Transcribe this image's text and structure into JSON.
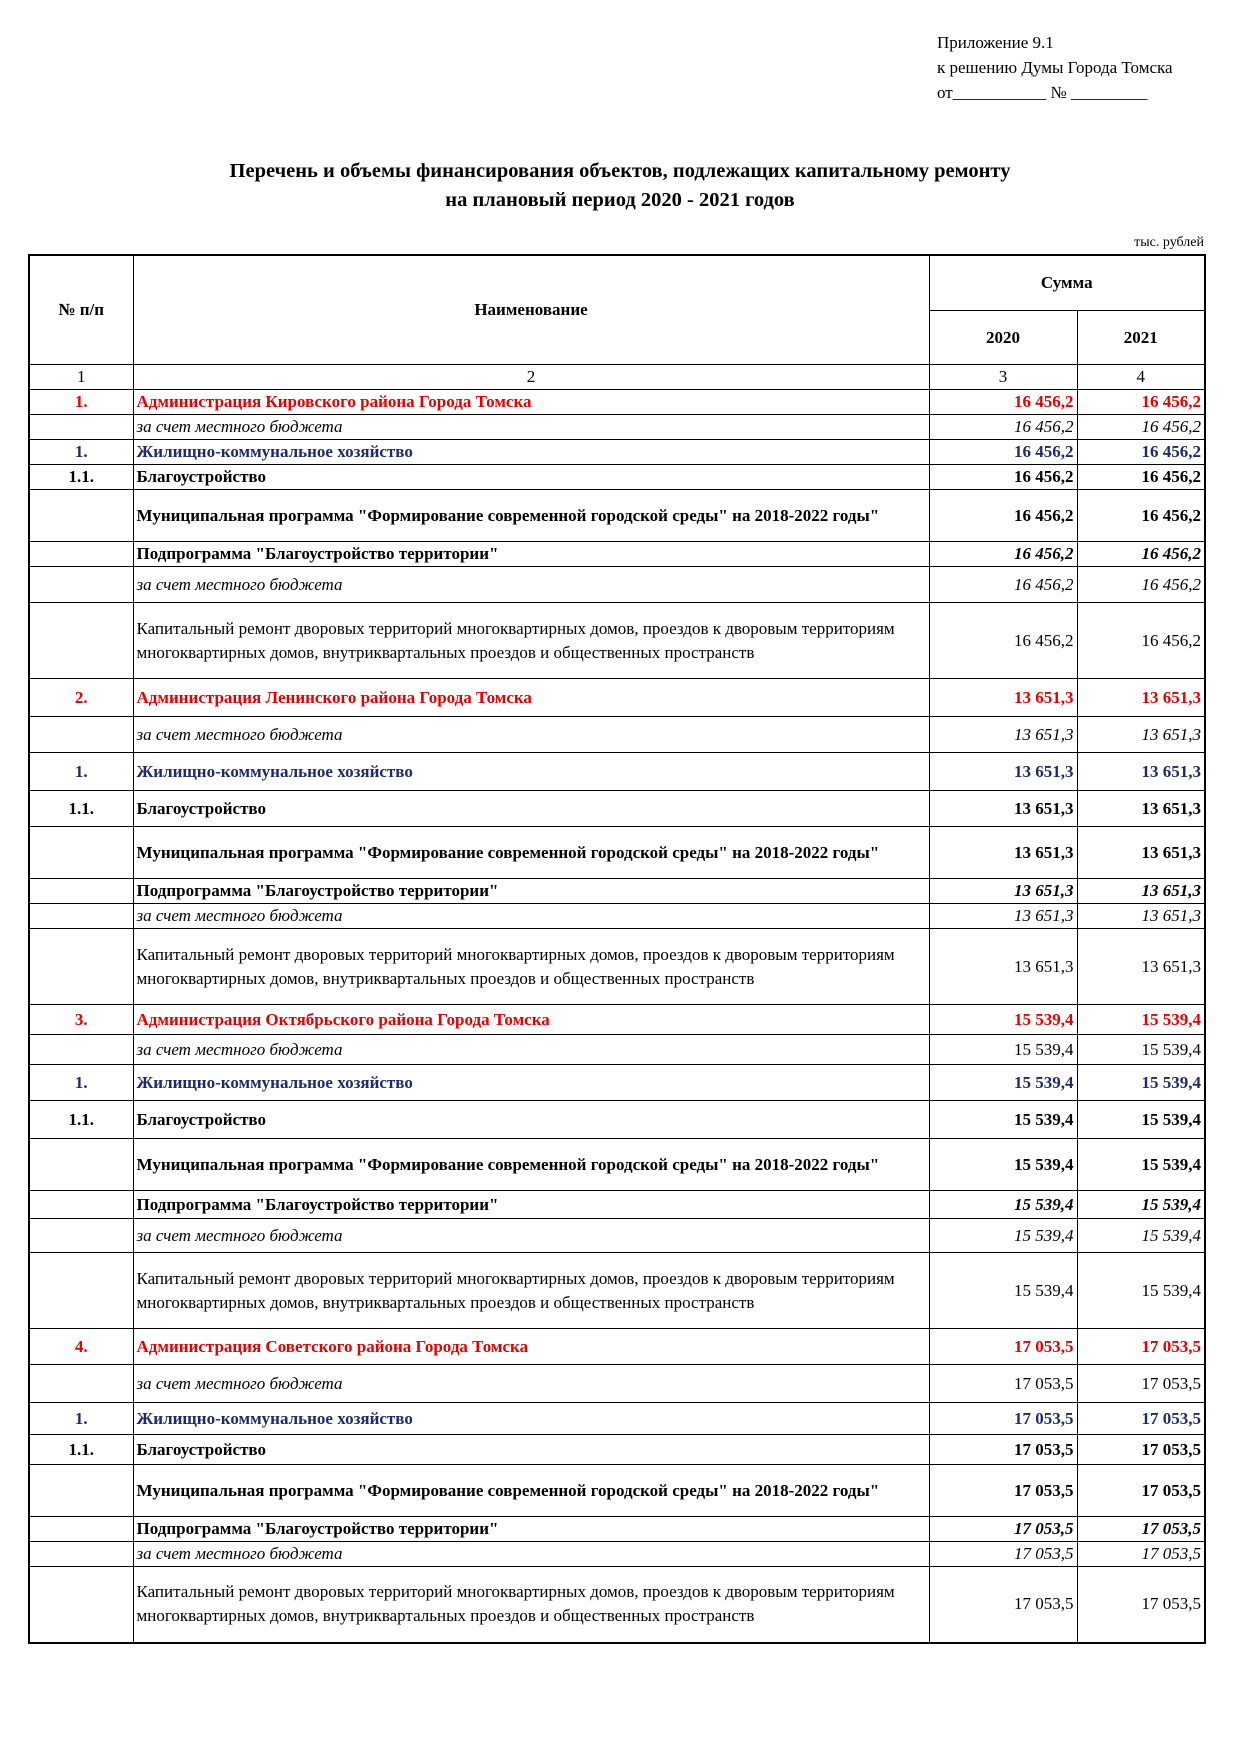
{
  "approval": {
    "line1": "Приложение 9.1",
    "line2": "к решению Думы Города Томска",
    "line3": "от___________ № _________"
  },
  "title": {
    "line1": "Перечень и объемы финансирования объектов, подлежащих капитальному ремонту",
    "line2": "на плановый период 2020 - 2021 годов"
  },
  "units": "тыс. рублей",
  "header": {
    "num": "№ п/п",
    "name": "Наименование",
    "sum": "Сумма",
    "y2020": "2020",
    "y2021": "2021",
    "c1": "1",
    "c2": "2",
    "c3": "3",
    "c4": "4"
  },
  "sections": [
    {
      "admin_num": "1.",
      "admin_name": "Администрация Кировского района Города Томска",
      "total": "16 456,2",
      "fund_label": "за счет местного бюджета",
      "sector_num": "1.",
      "sector_name": "Жилищно-коммунальное хозяйство",
      "sub_num": "1.1.",
      "sub_name": "Благоустройство",
      "program_name": "Муниципальная программа \"Формирование современной городской среды\" на 2018-2022 годы\"",
      "subprogram_name": "Подпрограмма \"Благоустройство территории\"",
      "object_name": "Капитальный ремонт дворовых территорий многоквартирных домов, проездов к дворовым территориям многоквартирных домов, внутриквартальных проездов и общественных пространств"
    },
    {
      "admin_num": "2.",
      "admin_name": "Администрация Ленинского района Города Томска",
      "total": "13 651,3",
      "fund_label": "за счет местного бюджета",
      "sector_num": "1.",
      "sector_name": "Жилищно-коммунальное хозяйство",
      "sub_num": "1.1.",
      "sub_name": "Благоустройство",
      "program_name": "Муниципальная программа \"Формирование современной городской среды\" на 2018-2022 годы\"",
      "subprogram_name": "Подпрограмма \"Благоустройство территории\"",
      "object_name": "Капитальный ремонт дворовых территорий многоквартирных домов, проездов к дворовым территориям многоквартирных домов, внутриквартальных проездов и общественных пространств"
    },
    {
      "admin_num": "3.",
      "admin_name": "Администрация Октябрьского района Города Томска",
      "total": "15 539,4",
      "fund_label": "за счет местного бюджета",
      "sector_num": "1.",
      "sector_name": "Жилищно-коммунальное хозяйство",
      "sub_num": "1.1.",
      "sub_name": "Благоустройство",
      "program_name": "Муниципальная программа \"Формирование современной городской среды\" на 2018-2022 годы\"",
      "subprogram_name": "Подпрограмма \"Благоустройство территории\"",
      "object_name": "Капитальный ремонт дворовых территорий многоквартирных домов, проездов к дворовым территориям многоквартирных домов, внутриквартальных проездов и общественных пространств"
    },
    {
      "admin_num": "4.",
      "admin_name": "Администрация Советского района Города Томска",
      "total": "17 053,5",
      "fund_label": "за счет местного бюджета",
      "sector_num": "1.",
      "sector_name": "Жилищно-коммунальное хозяйство",
      "sub_num": "1.1.",
      "sub_name": "Благоустройство",
      "program_name": "Муниципальная программа \"Формирование современной городской среды\" на 2018-2022 годы\"",
      "subprogram_name": "Подпрограмма \"Благоустройство территории\"",
      "object_name": "Капитальный ремонт дворовых территорий многоквартирных домов, проездов к дворовым территориям многоквартирных домов, внутриквартальных проездов и общественных пространств"
    }
  ]
}
